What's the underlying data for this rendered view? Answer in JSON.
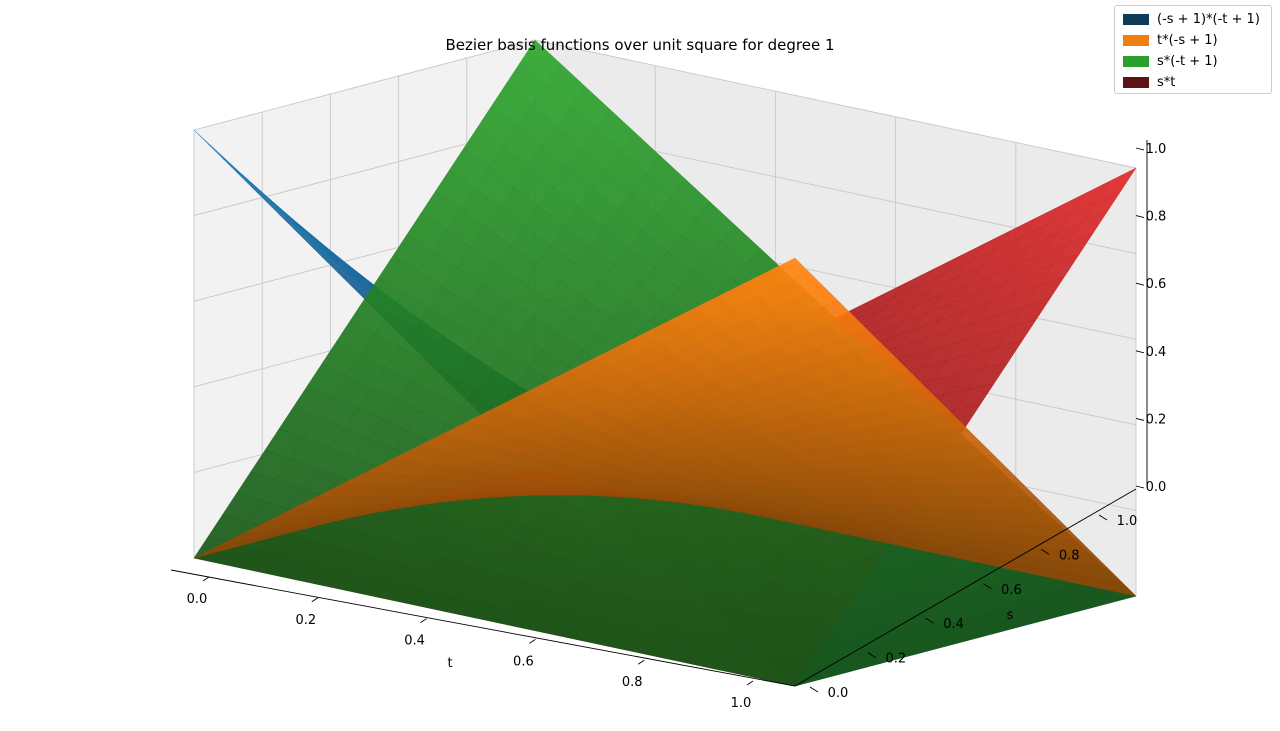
{
  "chart_data": {
    "type": "surface3d",
    "title": "Bezier basis functions over unit square for degree 1",
    "xlabel": "t",
    "ylabel": "s",
    "zlabel": "",
    "x_ticks": [
      "0.0",
      "0.2",
      "0.4",
      "0.6",
      "0.8",
      "1.0"
    ],
    "y_ticks": [
      "0.0",
      "0.2",
      "0.4",
      "0.6",
      "0.8",
      "1.0"
    ],
    "z_ticks": [
      "0.0",
      "0.2",
      "0.4",
      "0.6",
      "0.8",
      "1.0"
    ],
    "xlim": [
      0,
      1
    ],
    "ylim": [
      0,
      1
    ],
    "zlim": [
      0,
      1
    ],
    "grid": true,
    "legend_position": "top-right",
    "series": [
      {
        "name": "(-s + 1)*(-t + 1)",
        "legend_color": "#0e3b5a",
        "surface_color": "#1f77b4",
        "corners": {
          "t0_s0": 1,
          "t1_s0": 0,
          "t0_s1": 0,
          "t1_s1": 0
        }
      },
      {
        "name": "t*(-s + 1)",
        "legend_color": "#f07f13",
        "surface_color": "#ff7f0e",
        "corners": {
          "t0_s0": 0,
          "t1_s0": 1,
          "t0_s1": 0,
          "t1_s1": 0
        }
      },
      {
        "name": "s*(-t + 1)",
        "legend_color": "#2ca02c",
        "surface_color": "#2ca02c",
        "corners": {
          "t0_s0": 0,
          "t1_s0": 0,
          "t0_s1": 1,
          "t1_s1": 0
        }
      },
      {
        "name": "s*t",
        "legend_color": "#5a1414",
        "surface_color": "#d62728",
        "corners": {
          "t0_s0": 0,
          "t1_s0": 0,
          "t0_s1": 0,
          "t1_s1": 1
        }
      }
    ]
  }
}
